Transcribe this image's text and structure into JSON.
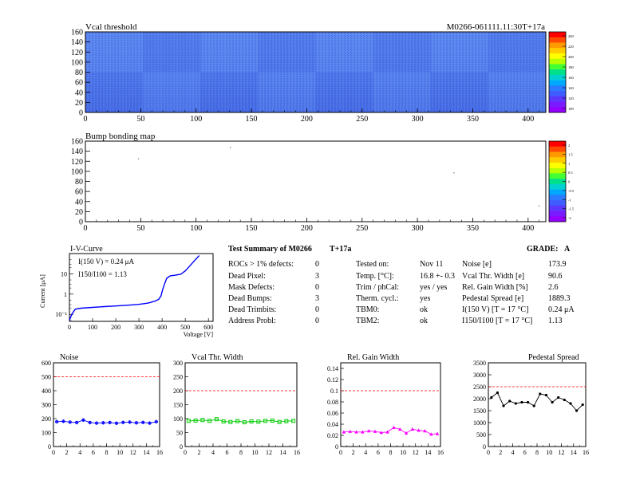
{
  "header": {
    "map1_title": "Vcal threshold",
    "module_id": "M0266-061111.11:30T+17a",
    "map2_title": "Bump bonding map"
  },
  "colors": {
    "map_blue": "#3f63e0",
    "map_blue_light": "#5a86ef",
    "noise": "#0000ff",
    "vcal_width": "#00cc00",
    "gain_width": "#ff00ff",
    "pedestal": "#000000",
    "reference_line": "#ff0000"
  },
  "summary": {
    "title": "Test Summary of M0266",
    "tag": "T+17a",
    "grade_label": "GRADE:",
    "grade": "A",
    "col1": [
      {
        "label": "ROCs > 1% defects:",
        "value": "0"
      },
      {
        "label": "Dead Pixel:",
        "value": "3"
      },
      {
        "label": "Mask Defects:",
        "value": "0"
      },
      {
        "label": "Dead Bumps:",
        "value": "3"
      },
      {
        "label": "Dead Trimbits:",
        "value": "0"
      },
      {
        "label": "Address Probl:",
        "value": "0"
      }
    ],
    "col2": [
      {
        "label": "Tested on:",
        "value": "Nov 11"
      },
      {
        "label": "Temp. [°C]:",
        "value": "16.8 +- 0.3"
      },
      {
        "label": "Trim / phCal:",
        "value": "yes / yes"
      },
      {
        "label": "Therm. cycl.:",
        "value": "yes"
      },
      {
        "label": "TBM0:",
        "value": "ok"
      },
      {
        "label": "TBM2:",
        "value": "ok"
      }
    ],
    "col3": [
      {
        "label": "Noise [e]",
        "value": "173.9"
      },
      {
        "label": "Vcal Thr. Width [e]",
        "value": "90.6"
      },
      {
        "label": "Rel. Gain Width [%]",
        "value": "2.6"
      },
      {
        "label": "Pedestal Spread [e]",
        "value": "1889.3"
      },
      {
        "label": "I(150 V) [T = 17 °C]",
        "value": "0.24 μA"
      },
      {
        "label": "I150/I100 [T = 17 °C]",
        "value": "1.13"
      }
    ]
  },
  "chart_data": [
    {
      "type": "heatmap",
      "title": "Vcal threshold",
      "x_ticks": [
        "0",
        "50",
        "100",
        "150",
        "200",
        "250",
        "300",
        "350",
        "400"
      ],
      "y_ticks": [
        "0",
        "20",
        "40",
        "60",
        "80",
        "100",
        "120",
        "140",
        "160"
      ],
      "xlim": [
        0,
        416
      ],
      "ylim": [
        0,
        160
      ],
      "palette_ticks": [
        "260",
        "220",
        "200",
        "180",
        "160",
        "140",
        "120",
        "100"
      ]
    },
    {
      "type": "heatmap",
      "title": "Bump bonding map",
      "x_ticks": [
        "0",
        "50",
        "100",
        "150",
        "200",
        "250",
        "300",
        "350",
        "400"
      ],
      "y_ticks": [
        "0",
        "20",
        "40",
        "60",
        "80",
        "100",
        "120",
        "140",
        "160"
      ],
      "xlim": [
        0,
        416
      ],
      "ylim": [
        0,
        160
      ],
      "palette_ticks": [
        "2",
        "1.5",
        "1",
        "0.5",
        "0",
        "-0.5",
        "-1",
        "-1.5",
        "-2"
      ],
      "points": [
        [
          48,
          125
        ],
        [
          131,
          147
        ],
        [
          333,
          97
        ],
        [
          410,
          31
        ]
      ]
    },
    {
      "type": "line",
      "title": "I-V-Curve",
      "xlabel": "Voltage [V]",
      "ylabel": "Current [μA]",
      "annotation_1": "I(150 V) = 0.24 μA",
      "annotation_2": "I150/I100 = 1.13",
      "x_ticks": [
        "0",
        "100",
        "200",
        "300",
        "400",
        "500",
        "600"
      ],
      "y_ticks": [
        "10⁻¹",
        "1",
        "10"
      ],
      "xlim": [
        0,
        620
      ],
      "ylim": [
        0.045,
        100
      ],
      "y_scale": "log",
      "x": [
        0,
        10,
        25,
        50,
        100,
        150,
        200,
        250,
        300,
        340,
        370,
        385,
        395,
        402,
        410,
        420,
        435,
        455,
        480,
        500,
        520,
        540,
        560
      ],
      "y": [
        0.05,
        0.1,
        0.18,
        0.2,
        0.22,
        0.24,
        0.26,
        0.28,
        0.31,
        0.36,
        0.45,
        0.55,
        0.8,
        1.6,
        3,
        6,
        8,
        8.5,
        9.5,
        14,
        25,
        45,
        80
      ]
    },
    {
      "type": "line",
      "title": "Noise",
      "x_ticks": [
        "0",
        "2",
        "4",
        "6",
        "8",
        "10",
        "12",
        "14",
        "16"
      ],
      "y_ticks": [
        "0",
        "100",
        "200",
        "300",
        "400",
        "500",
        "600"
      ],
      "xlim": [
        0,
        16
      ],
      "ylim": [
        0,
        600
      ],
      "ref_line": 500,
      "x": [
        0,
        1,
        2,
        3,
        4,
        5,
        6,
        7,
        8,
        9,
        10,
        11,
        12,
        13,
        14,
        15
      ],
      "y": [
        178,
        181,
        175,
        172,
        190,
        172,
        168,
        170,
        172,
        167,
        173,
        175,
        170,
        173,
        168,
        178
      ]
    },
    {
      "type": "line",
      "title": "Vcal Thr. Width",
      "x_ticks": [
        "0",
        "2",
        "4",
        "6",
        "8",
        "10",
        "12",
        "14",
        "16"
      ],
      "y_ticks": [
        "0",
        "50",
        "100",
        "150",
        "200",
        "250",
        "300"
      ],
      "xlim": [
        0,
        16
      ],
      "ylim": [
        0,
        300
      ],
      "ref_line": 200,
      "x": [
        0,
        1,
        2,
        3,
        4,
        5,
        6,
        7,
        8,
        9,
        10,
        11,
        12,
        13,
        14,
        15
      ],
      "y": [
        92,
        93,
        95,
        92,
        98,
        90,
        88,
        91,
        87,
        90,
        89,
        92,
        93,
        88,
        91,
        92
      ]
    },
    {
      "type": "line",
      "title": "Rel. Gain Width",
      "x_ticks": [
        "0",
        "2",
        "4",
        "6",
        "8",
        "10",
        "12",
        "14",
        "16"
      ],
      "y_ticks": [
        "0",
        "0.02",
        "0.04",
        "0.06",
        "0.08",
        "0.1",
        "0.12",
        "0.14"
      ],
      "xlim": [
        0,
        16
      ],
      "ylim": [
        0,
        0.15
      ],
      "ref_line": 0.1,
      "x": [
        0,
        1,
        2,
        3,
        4,
        5,
        6,
        7,
        8,
        9,
        10,
        11,
        12,
        13,
        14,
        15
      ],
      "y": [
        0.026,
        0.027,
        0.026,
        0.026,
        0.028,
        0.027,
        0.025,
        0.026,
        0.034,
        0.031,
        0.024,
        0.031,
        0.029,
        0.028,
        0.022,
        0.023
      ]
    },
    {
      "type": "line",
      "title": "Pedestal Spread",
      "x_ticks": [
        "0",
        "2",
        "4",
        "6",
        "8",
        "10",
        "12",
        "14",
        "16"
      ],
      "y_ticks": [
        "0",
        "500",
        "1000",
        "1500",
        "2000",
        "2500",
        "3000",
        "3500"
      ],
      "xlim": [
        0,
        16
      ],
      "ylim": [
        0,
        3500
      ],
      "ref_line": 2500,
      "x": [
        0,
        1,
        2,
        3,
        4,
        5,
        6,
        7,
        8,
        9,
        10,
        11,
        12,
        13,
        14,
        15
      ],
      "y": [
        2050,
        2250,
        1700,
        1900,
        1800,
        1850,
        1850,
        1700,
        2200,
        2150,
        1850,
        2050,
        1950,
        1800,
        1500,
        1750
      ]
    }
  ]
}
